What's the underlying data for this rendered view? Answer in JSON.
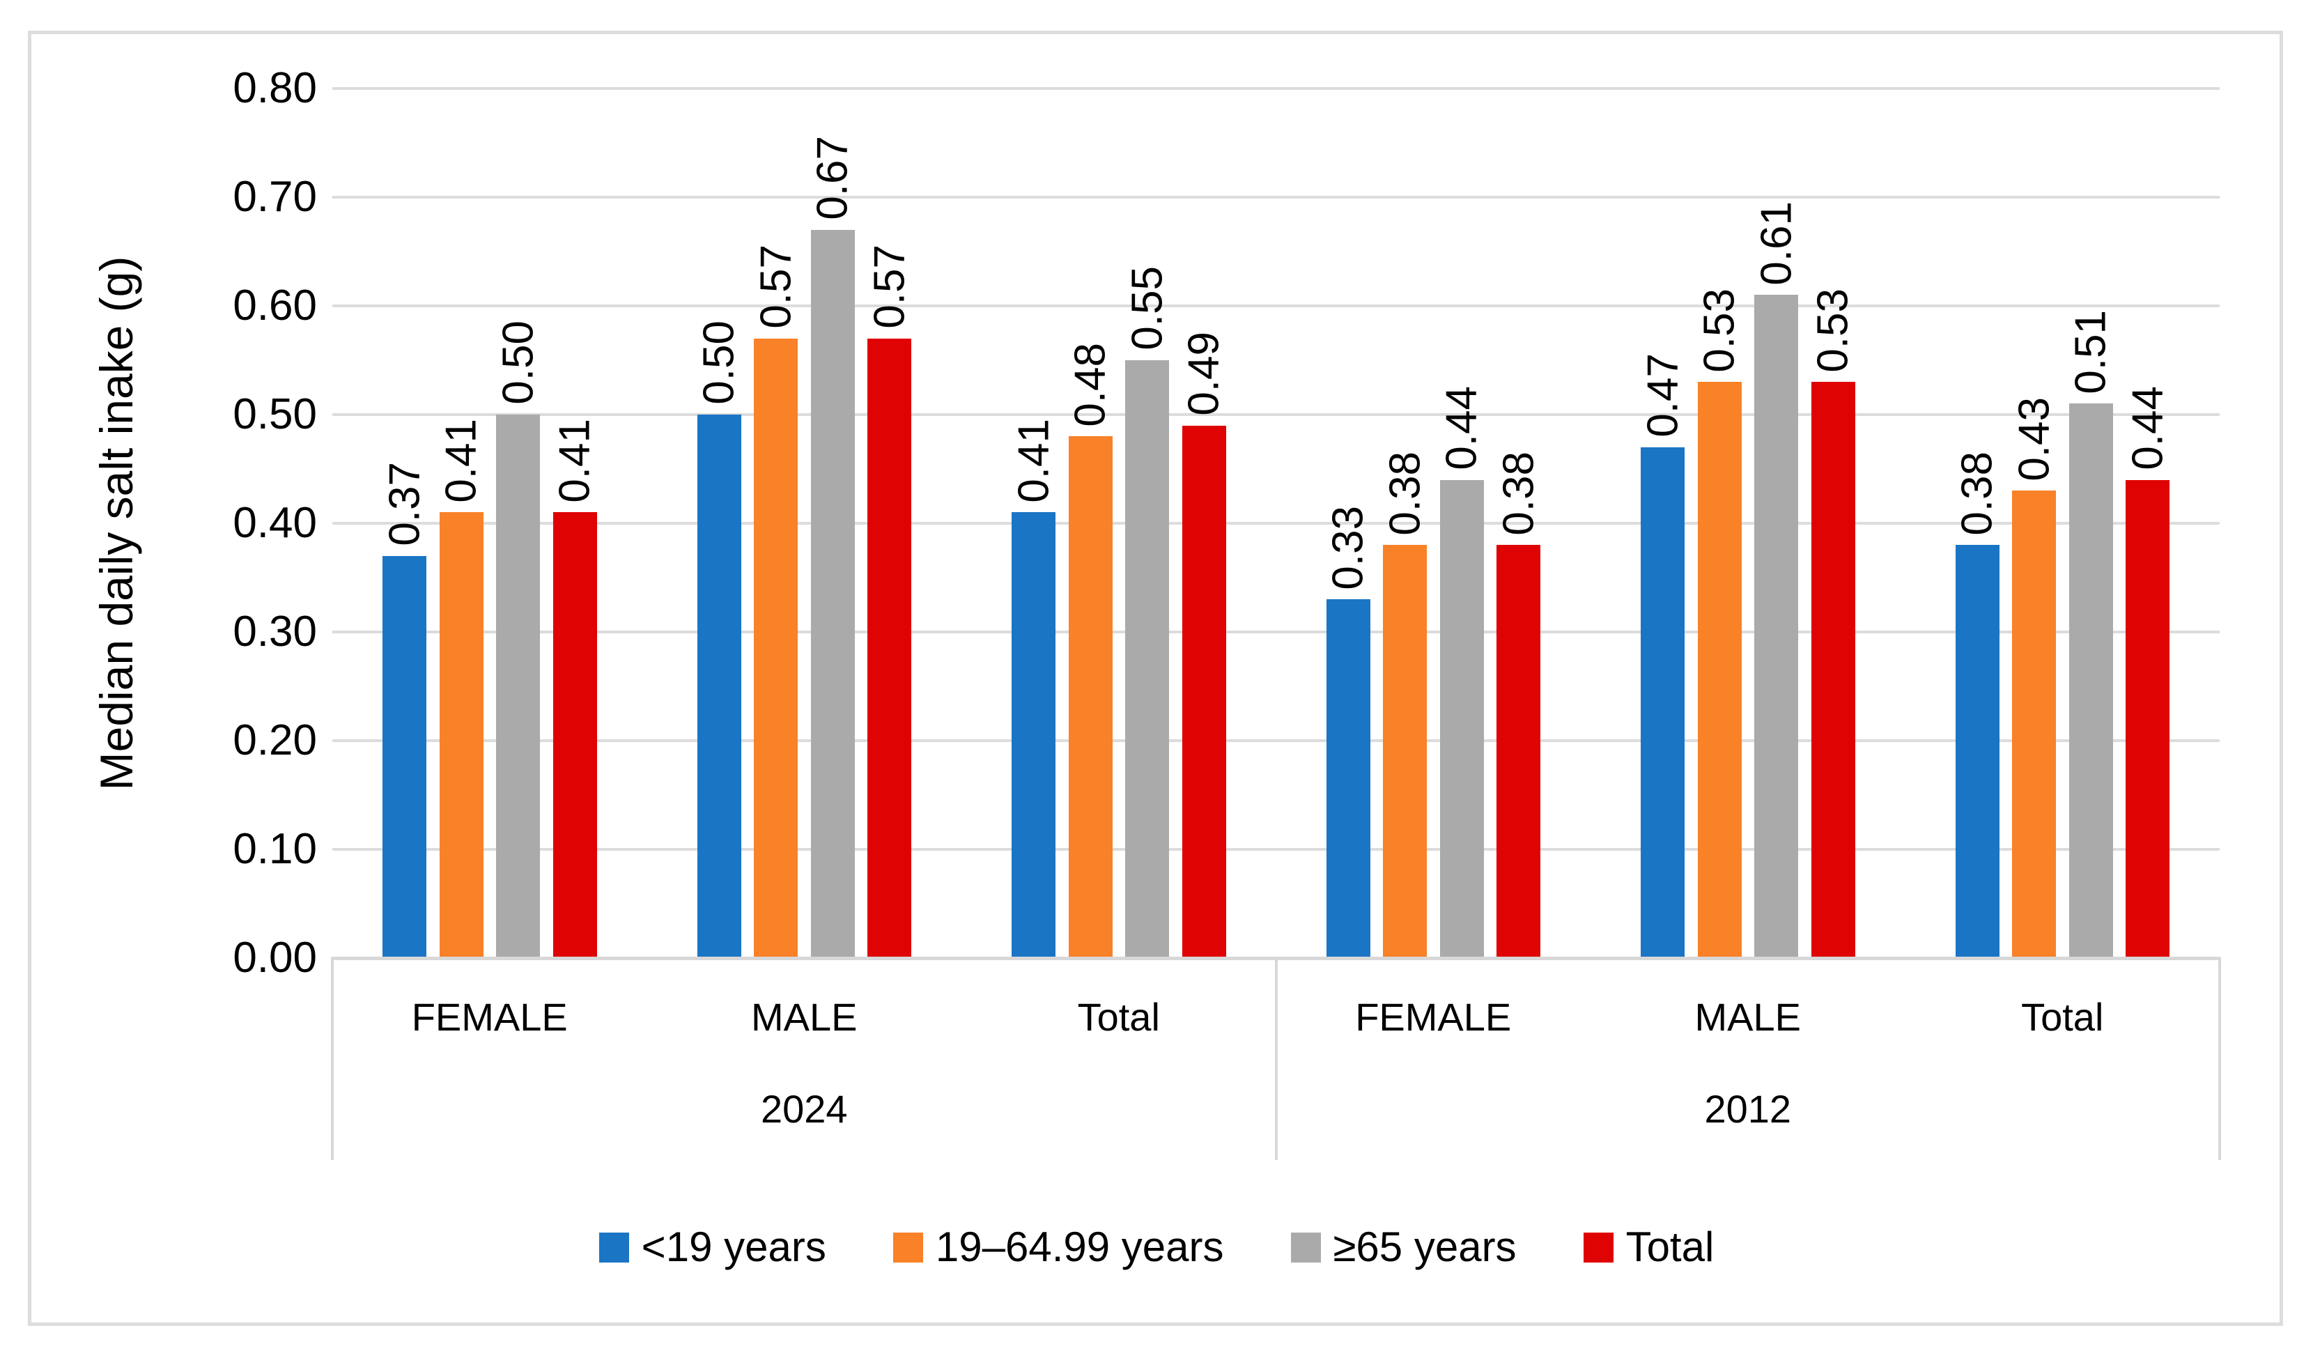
{
  "figure": {
    "border_color": "#DDDDDD",
    "background": "#FFFFFF"
  },
  "chart_data": {
    "type": "bar",
    "title": "",
    "xlabel": "",
    "ylabel": "Median daily salt inake (g)",
    "ylim": [
      0,
      0.8
    ],
    "ytick_step": 0.1,
    "yticks": [
      "0.00",
      "0.10",
      "0.20",
      "0.30",
      "0.40",
      "0.50",
      "0.60",
      "0.70",
      "0.80"
    ],
    "grid": "horizontal",
    "gridline_color": "#DCDCDC",
    "legend_position": "bottom",
    "top_level_groups": [
      {
        "label": "2024",
        "categories": [
          "FEMALE",
          "MALE",
          "Total"
        ]
      },
      {
        "label": "2012",
        "categories": [
          "FEMALE",
          "MALE",
          "Total"
        ]
      }
    ],
    "group_order": [
      "2024 FEMALE",
      "2024 MALE",
      "2024 Total",
      "2012 FEMALE",
      "2012 MALE",
      "2012 Total"
    ],
    "series": [
      {
        "name": "<19 years",
        "color": "#1B75C5",
        "values": [
          0.37,
          0.5,
          0.41,
          0.33,
          0.47,
          0.38
        ],
        "labels": [
          "0.37",
          "0.50",
          "0.41",
          "0.33",
          "0.47",
          "0.38"
        ]
      },
      {
        "name": "19–64.99 years",
        "color": "#F98128",
        "values": [
          0.41,
          0.57,
          0.48,
          0.38,
          0.53,
          0.43
        ],
        "labels": [
          "0.41",
          "0.57",
          "0.48",
          "0.38",
          "0.53",
          "0.43"
        ]
      },
      {
        "name": "≥65 years",
        "color": "#AAAAAA",
        "values": [
          0.5,
          0.67,
          0.55,
          0.44,
          0.61,
          0.51
        ],
        "labels": [
          "0.50",
          "0.67",
          "0.55",
          "0.44",
          "0.61",
          "0.51"
        ]
      },
      {
        "name": "Total",
        "color": "#DF0303",
        "values": [
          0.41,
          0.57,
          0.49,
          0.38,
          0.53,
          0.44
        ],
        "labels": [
          "0.41",
          "0.57",
          "0.49",
          "0.38",
          "0.53",
          "0.44"
        ]
      }
    ]
  }
}
